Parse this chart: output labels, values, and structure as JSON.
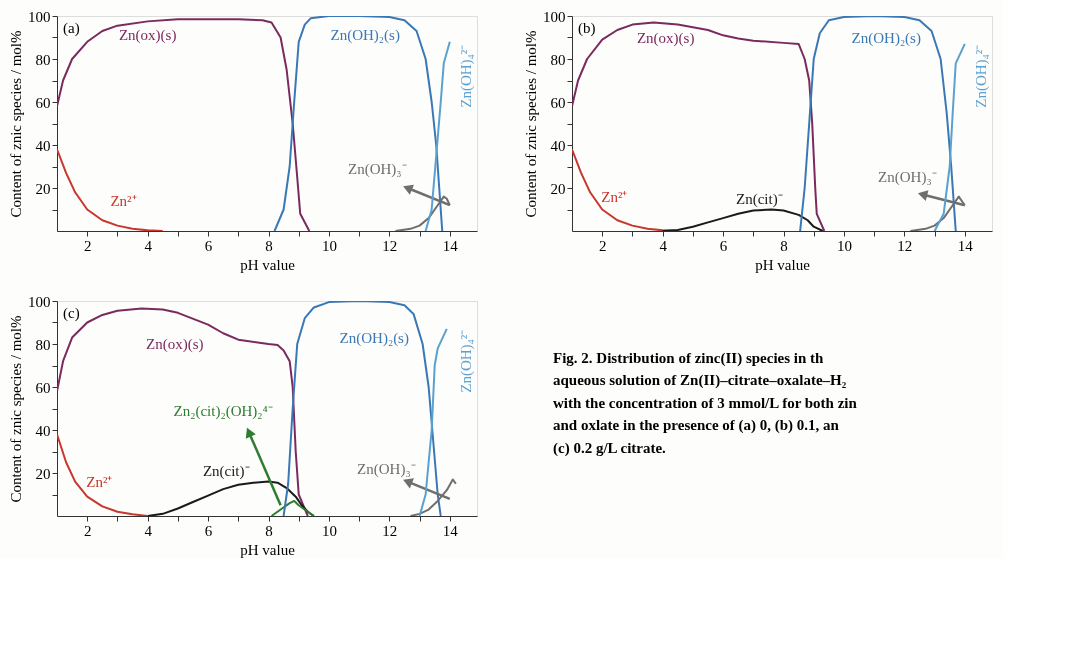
{
  "chart_data": [
    {
      "type": "line",
      "xlabel": "pH value",
      "ylabel": "Content of znic species / mol%",
      "annotations": [
        "(a)"
      ],
      "legend": false,
      "grid": false,
      "xlim": [
        1,
        14.9
      ],
      "ylim": [
        0,
        100
      ],
      "xticks": [
        2,
        {
          "value": 3,
          "label": null
        },
        4,
        {
          "value": 5,
          "label": null
        },
        6,
        {
          "value": 7,
          "label": null
        },
        8,
        {
          "value": 9,
          "label": null
        },
        10,
        {
          "value": 11,
          "label": null
        },
        12,
        {
          "value": 13,
          "label": null
        },
        14
      ],
      "yticks": [
        {
          "value": 10,
          "label": null
        },
        20,
        {
          "value": 30,
          "label": null
        },
        40,
        {
          "value": 50,
          "label": null
        },
        60,
        {
          "value": 70,
          "label": null
        },
        80,
        {
          "value": 90,
          "label": null
        },
        100
      ],
      "series": [
        {
          "name": "Zn²⁺",
          "color": "#c8372d",
          "x": [
            1,
            1.3,
            1.6,
            2,
            2.5,
            3,
            3.5,
            4,
            4.5
          ],
          "values": [
            38,
            27,
            18,
            10,
            5,
            2.5,
            1,
            0.3,
            0
          ]
        },
        {
          "name": "Zn(ox)(s)",
          "color": "#7b2a5e",
          "x": [
            1,
            1.2,
            1.5,
            2,
            2.5,
            3,
            4,
            5,
            6,
            7,
            7.8,
            8.1,
            8.4,
            8.6,
            8.8,
            8.95,
            9.05,
            9.35
          ],
          "values": [
            58,
            70,
            80,
            88,
            93,
            95.5,
            97.5,
            98.5,
            98.5,
            98.5,
            98,
            97,
            90,
            75,
            50,
            25,
            8,
            0
          ]
        },
        {
          "name": "Zn(OH)₂(s)",
          "color": "#3a78b5",
          "x": [
            8.2,
            8.5,
            8.7,
            8.85,
            9,
            9.2,
            9.4,
            10,
            11,
            12,
            12.5,
            12.9,
            13.2,
            13.4,
            13.55,
            13.65,
            13.75
          ],
          "values": [
            0,
            10,
            30,
            60,
            88,
            96,
            99,
            100,
            100,
            99.5,
            98,
            93,
            80,
            60,
            40,
            20,
            0
          ]
        },
        {
          "name": "Zn(OH)₃⁻",
          "color": "#6e6e6e",
          "x": [
            12.2,
            12.7,
            13,
            13.3,
            13.6,
            13.8,
            13.9,
            14
          ],
          "values": [
            0,
            1,
            2.5,
            6,
            12,
            16,
            15,
            12
          ]
        },
        {
          "name": "Zn(OH)₄²⁻",
          "color": "#5aa0d0",
          "x": [
            13.2,
            13.4,
            13.55,
            13.7,
            13.8,
            14
          ],
          "values": [
            0,
            10,
            35,
            60,
            78,
            88
          ]
        }
      ]
    },
    {
      "type": "line",
      "xlabel": "pH value",
      "ylabel": "Content of znic species / mol%",
      "annotations": [
        "(b)"
      ],
      "legend": false,
      "grid": false,
      "xlim": [
        1,
        14.9
      ],
      "ylim": [
        0,
        100
      ],
      "xticks": [
        2,
        {
          "value": 3,
          "label": null
        },
        4,
        {
          "value": 5,
          "label": null
        },
        6,
        {
          "value": 7,
          "label": null
        },
        8,
        {
          "value": 9,
          "label": null
        },
        10,
        {
          "value": 11,
          "label": null
        },
        12,
        {
          "value": 13,
          "label": null
        },
        14
      ],
      "yticks": [
        {
          "value": 10,
          "label": null
        },
        20,
        {
          "value": 30,
          "label": null
        },
        40,
        {
          "value": 50,
          "label": null
        },
        60,
        {
          "value": 70,
          "label": null
        },
        80,
        {
          "value": 90,
          "label": null
        },
        100
      ],
      "series": [
        {
          "name": "Zn²⁺",
          "color": "#c8372d",
          "x": [
            1,
            1.3,
            1.6,
            2,
            2.5,
            3,
            3.5,
            4,
            4.5
          ],
          "values": [
            38,
            27,
            18,
            10,
            5,
            2.5,
            1,
            0.3,
            0
          ]
        },
        {
          "name": "Zn(ox)(s)",
          "color": "#7b2a5e",
          "x": [
            1,
            1.2,
            1.5,
            2,
            2.5,
            3,
            3.7,
            4.5,
            5.5,
            6,
            6.5,
            7,
            8,
            8.5,
            8.7,
            8.85,
            8.95,
            9.05,
            9.1,
            9.35
          ],
          "values": [
            58,
            70,
            80,
            89,
            93.5,
            96,
            97,
            96,
            93.5,
            91,
            89.5,
            88.5,
            87.5,
            87,
            80,
            70,
            50,
            20,
            8,
            0
          ]
        },
        {
          "name": "Zn(cit)⁻",
          "color": "#1a1a1a",
          "x": [
            4,
            4.5,
            5,
            5.5,
            6,
            6.5,
            7,
            7.6,
            8,
            8.5,
            8.8,
            9,
            9.3
          ],
          "values": [
            0,
            0.5,
            2,
            4,
            6,
            8,
            9.5,
            10,
            9.5,
            7.5,
            5,
            2,
            0
          ]
        },
        {
          "name": "Zn(OH)₂(s)",
          "color": "#3a78b5",
          "x": [
            8.55,
            8.7,
            8.85,
            9,
            9.2,
            9.5,
            10,
            11,
            12,
            12.5,
            12.9,
            13.2,
            13.4,
            13.55,
            13.65,
            13.7
          ],
          "values": [
            0,
            20,
            50,
            80,
            92,
            98,
            99.5,
            100,
            99.5,
            98,
            93,
            80,
            55,
            30,
            10,
            0
          ]
        },
        {
          "name": "Zn(OH)₃⁻",
          "color": "#6e6e6e",
          "x": [
            12.2,
            12.7,
            13,
            13.3,
            13.6,
            13.8,
            14
          ],
          "values": [
            0,
            1,
            2.5,
            6,
            12,
            16,
            12
          ]
        },
        {
          "name": "Zn(OH)₄²⁻",
          "color": "#5aa0d0",
          "x": [
            13,
            13.3,
            13.5,
            13.6,
            13.7,
            14
          ],
          "values": [
            0,
            8,
            30,
            55,
            78,
            87
          ]
        }
      ]
    },
    {
      "type": "line",
      "xlabel": "pH value",
      "ylabel": "Content of znic species / mol%",
      "annotations": [
        "(c)"
      ],
      "legend": false,
      "grid": false,
      "xlim": [
        1,
        14.9
      ],
      "ylim": [
        0,
        100
      ],
      "xticks": [
        2,
        {
          "value": 3,
          "label": null
        },
        4,
        {
          "value": 5,
          "label": null
        },
        6,
        {
          "value": 7,
          "label": null
        },
        8,
        {
          "value": 9,
          "label": null
        },
        10,
        {
          "value": 11,
          "label": null
        },
        12,
        {
          "value": 13,
          "label": null
        },
        14
      ],
      "yticks": [
        {
          "value": 10,
          "label": null
        },
        20,
        {
          "value": 30,
          "label": null
        },
        40,
        {
          "value": 50,
          "label": null
        },
        60,
        {
          "value": 70,
          "label": null
        },
        80,
        {
          "value": 90,
          "label": null
        },
        100
      ],
      "series": [
        {
          "name": "Zn²⁺",
          "color": "#c8372d",
          "x": [
            1,
            1.3,
            1.6,
            2,
            2.5,
            3,
            3.5,
            4
          ],
          "values": [
            38,
            25,
            16,
            9,
            4.5,
            2,
            0.8,
            0
          ]
        },
        {
          "name": "Zn(ox)(s)",
          "color": "#7b2a5e",
          "x": [
            1,
            1.2,
            1.5,
            2,
            2.5,
            3,
            3.8,
            4.5,
            5,
            6,
            6.5,
            7,
            8,
            8.3,
            8.5,
            8.7,
            8.8,
            8.9,
            9,
            9.3
          ],
          "values": [
            58,
            72,
            83,
            90,
            93.5,
            95.5,
            96.5,
            96,
            94.5,
            89,
            85,
            82,
            80,
            79.5,
            77,
            72,
            60,
            30,
            10,
            0
          ]
        },
        {
          "name": "Zn(cit)⁻",
          "color": "#1a1a1a",
          "x": [
            4,
            4.5,
            5,
            5.5,
            6,
            6.5,
            7,
            7.5,
            8,
            8.3,
            8.6,
            8.9,
            9.1,
            9.3,
            9.5
          ],
          "values": [
            0,
            1,
            3.5,
            6.5,
            9.5,
            12.5,
            14.5,
            15.5,
            16,
            15.5,
            13,
            9,
            5,
            2,
            0
          ]
        },
        {
          "name": "Zn₂(cit)₂(OH)₂⁴⁻",
          "color": "#2e7d32",
          "x": [
            8.1,
            8.4,
            8.7,
            8.85,
            9,
            9.3,
            9.5
          ],
          "values": [
            0,
            3,
            6,
            7,
            5,
            2,
            0
          ]
        },
        {
          "name": "Zn(OH)₂(s)",
          "color": "#3a78b5",
          "x": [
            8.5,
            8.65,
            8.8,
            8.95,
            9.2,
            9.5,
            10,
            11,
            12,
            12.5,
            12.8,
            13.1,
            13.3,
            13.45,
            13.6,
            13.7
          ],
          "values": [
            0,
            15,
            50,
            80,
            92,
            97,
            99.5,
            100,
            99.5,
            98,
            94,
            80,
            60,
            35,
            10,
            0
          ]
        },
        {
          "name": "Zn(OH)₃⁻",
          "color": "#6e6e6e",
          "x": [
            12.7,
            13,
            13.3,
            13.6,
            13.9,
            14.1,
            14.2
          ],
          "values": [
            0,
            1,
            3,
            7,
            12,
            17,
            15
          ]
        },
        {
          "name": "Zn(OH)₄²⁻",
          "color": "#5aa0d0",
          "x": [
            13,
            13.2,
            13.4,
            13.5,
            13.6,
            13.9
          ],
          "values": [
            0,
            10,
            40,
            70,
            78,
            87
          ]
        }
      ]
    },
    {
      "type": "other",
      "annotations": [
        "Fig. 2.  Distribution of zinc(II) species in th",
        "aqueous solution of Zn(II)–citrate–oxalate–H₂",
        "with the concentration of 3 mmol/L for both zin",
        "and oxlate in the presence of (a) 0, (b) 0.1, an",
        "(c) 0.2 g/L citrate."
      ]
    }
  ]
}
